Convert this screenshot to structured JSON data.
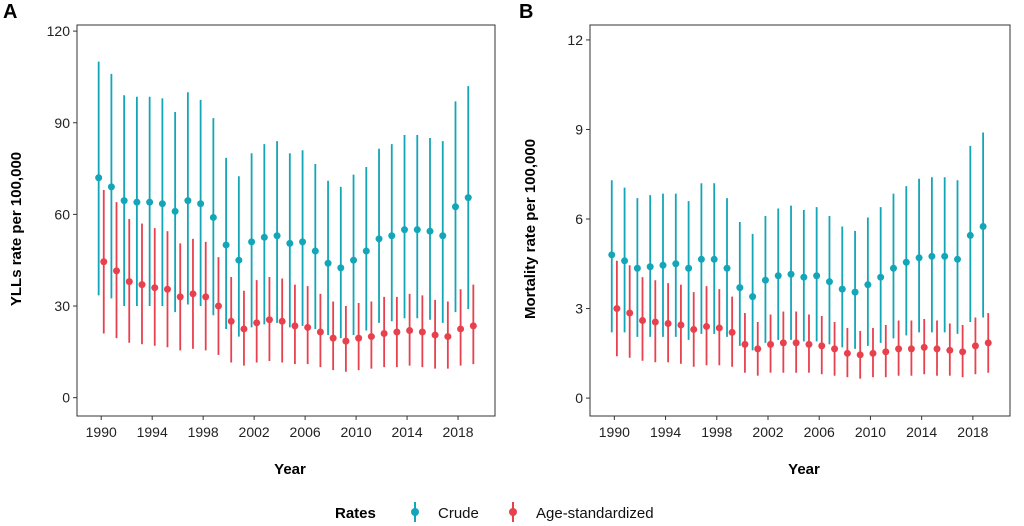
{
  "legend": {
    "title": "Rates",
    "placement": "bottom",
    "entries": [
      {
        "key": "crude",
        "label": "Crude",
        "color": "#13A6B8"
      },
      {
        "key": "age",
        "label": "Age-standardized",
        "color": "#E8414E"
      }
    ]
  },
  "chart_data": [
    {
      "type": "scatter",
      "panel_label": "A",
      "xlabel": "Year",
      "ylabel": "YLLs rate per 100,000",
      "xlim": [
        1988.1,
        2020.9
      ],
      "ylim": [
        -6,
        122
      ],
      "xticks": [
        1990,
        1994,
        1998,
        2002,
        2006,
        2010,
        2014,
        2018
      ],
      "yticks": [
        0,
        30,
        60,
        90,
        120
      ],
      "grid": false,
      "x": [
        1990,
        1991,
        1992,
        1993,
        1994,
        1995,
        1996,
        1997,
        1998,
        1999,
        2000,
        2001,
        2002,
        2003,
        2004,
        2005,
        2006,
        2007,
        2008,
        2009,
        2010,
        2011,
        2012,
        2013,
        2014,
        2015,
        2016,
        2017,
        2018,
        2019
      ],
      "series": [
        {
          "name": "Crude",
          "color": "#13A6B8",
          "offset": -0.2,
          "values": [
            72,
            69,
            64.5,
            64,
            64,
            63.5,
            61,
            64.5,
            63.5,
            59,
            50,
            45,
            51,
            52.5,
            53,
            50.5,
            51,
            48,
            44,
            42.5,
            45,
            48,
            52,
            53,
            55,
            55,
            54.5,
            53,
            62.5,
            65.5
          ],
          "lower": [
            33.5,
            32.5,
            30,
            30,
            30,
            30,
            28,
            30.5,
            30,
            27,
            22.5,
            20,
            23,
            24,
            24.5,
            23,
            23.5,
            22.5,
            20.5,
            19.5,
            20.5,
            22,
            24.5,
            25,
            26,
            26,
            25.5,
            24.5,
            28,
            29
          ],
          "upper": [
            110,
            106,
            99,
            98.5,
            98.5,
            98,
            93.5,
            100,
            97.5,
            91.5,
            78.5,
            72.5,
            80,
            83,
            84,
            80,
            81,
            76.5,
            71,
            69,
            73,
            75.5,
            81.5,
            83,
            86,
            86,
            85,
            84,
            97,
            102
          ]
        },
        {
          "name": "Age-standardized",
          "color": "#E8414E",
          "offset": 0.2,
          "values": [
            44.5,
            41.5,
            38,
            37,
            36,
            35.5,
            33,
            34,
            33,
            30,
            25,
            22.5,
            24.5,
            25.5,
            25,
            23.5,
            23,
            21.5,
            19.5,
            18.5,
            19.5,
            20,
            21,
            21.5,
            22,
            21.5,
            20.5,
            20,
            22.5,
            23.5
          ],
          "lower": [
            21,
            19.5,
            18,
            17.5,
            17,
            16.5,
            15.5,
            16,
            15.5,
            14,
            11.5,
            10.5,
            11.5,
            12,
            11.5,
            11,
            11,
            10,
            9,
            8.5,
            9,
            9.5,
            10,
            10,
            10.5,
            10,
            9.5,
            9.5,
            10.5,
            11
          ],
          "upper": [
            68,
            64,
            58.5,
            57,
            55.5,
            54.5,
            50.5,
            52,
            51,
            46,
            39.5,
            35,
            38.5,
            39.5,
            39,
            37,
            36.5,
            34,
            31.5,
            30,
            31,
            31.5,
            33,
            33,
            34,
            33.5,
            32,
            31.5,
            35.5,
            37
          ]
        }
      ]
    },
    {
      "type": "scatter",
      "panel_label": "B",
      "xlabel": "Year",
      "ylabel": "Mortality rate per 100,000",
      "xlim": [
        1988.1,
        2020.9
      ],
      "ylim": [
        -0.6,
        12.5
      ],
      "xticks": [
        1990,
        1994,
        1998,
        2002,
        2006,
        2010,
        2014,
        2018
      ],
      "yticks": [
        0,
        3,
        6,
        9,
        12
      ],
      "grid": false,
      "x": [
        1990,
        1991,
        1992,
        1993,
        1994,
        1995,
        1996,
        1997,
        1998,
        1999,
        2000,
        2001,
        2002,
        2003,
        2004,
        2005,
        2006,
        2007,
        2008,
        2009,
        2010,
        2011,
        2012,
        2013,
        2014,
        2015,
        2016,
        2017,
        2018,
        2019
      ],
      "series": [
        {
          "name": "Crude",
          "color": "#13A6B8",
          "offset": -0.2,
          "values": [
            4.8,
            4.6,
            4.35,
            4.4,
            4.45,
            4.5,
            4.35,
            4.65,
            4.65,
            4.35,
            3.7,
            3.4,
            3.95,
            4.1,
            4.15,
            4.05,
            4.1,
            3.9,
            3.65,
            3.55,
            3.8,
            4.05,
            4.35,
            4.55,
            4.7,
            4.75,
            4.75,
            4.65,
            5.45,
            5.75
          ],
          "lower": [
            2.2,
            2.2,
            2.05,
            2.05,
            2.05,
            2.05,
            1.95,
            2.15,
            2.15,
            2.05,
            1.75,
            1.6,
            1.85,
            1.95,
            1.95,
            1.9,
            1.9,
            1.8,
            1.7,
            1.65,
            1.75,
            1.85,
            2,
            2.1,
            2.2,
            2.2,
            2.2,
            2.15,
            2.55,
            2.7
          ],
          "upper": [
            7.3,
            7.05,
            6.7,
            6.8,
            6.85,
            6.85,
            6.6,
            7.2,
            7.2,
            6.7,
            5.9,
            5.5,
            6.1,
            6.35,
            6.45,
            6.3,
            6.4,
            6.1,
            5.75,
            5.6,
            6.05,
            6.4,
            6.85,
            7.1,
            7.35,
            7.4,
            7.4,
            7.3,
            8.45,
            8.9
          ]
        },
        {
          "name": "Age-standardized",
          "color": "#E8414E",
          "offset": 0.2,
          "values": [
            3,
            2.85,
            2.6,
            2.55,
            2.5,
            2.45,
            2.3,
            2.4,
            2.35,
            2.2,
            1.8,
            1.65,
            1.8,
            1.85,
            1.85,
            1.8,
            1.75,
            1.65,
            1.5,
            1.45,
            1.5,
            1.55,
            1.65,
            1.65,
            1.7,
            1.65,
            1.6,
            1.55,
            1.75,
            1.85
          ],
          "lower": [
            1.4,
            1.35,
            1.25,
            1.2,
            1.2,
            1.15,
            1.05,
            1.1,
            1.1,
            1.05,
            0.85,
            0.75,
            0.85,
            0.85,
            0.85,
            0.85,
            0.8,
            0.75,
            0.7,
            0.65,
            0.7,
            0.7,
            0.75,
            0.75,
            0.8,
            0.75,
            0.75,
            0.7,
            0.8,
            0.85
          ],
          "upper": [
            4.6,
            4.45,
            4.05,
            3.95,
            3.85,
            3.8,
            3.55,
            3.75,
            3.65,
            3.4,
            2.85,
            2.55,
            2.8,
            2.9,
            2.9,
            2.8,
            2.75,
            2.55,
            2.35,
            2.25,
            2.35,
            2.45,
            2.6,
            2.6,
            2.65,
            2.6,
            2.5,
            2.45,
            2.7,
            2.85
          ]
        }
      ]
    }
  ]
}
